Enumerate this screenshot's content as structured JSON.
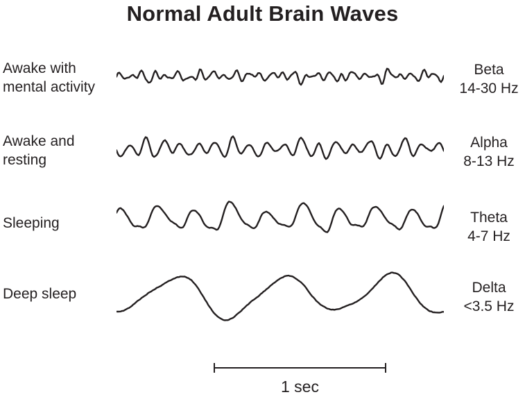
{
  "title": "Normal Adult Brain Waves",
  "colors": {
    "ink": "#231f20",
    "background": "#ffffff"
  },
  "rows": [
    {
      "state_line1": "Awake with",
      "state_line2": "mental activity",
      "band": "Beta",
      "freq": "14-30 Hz",
      "wave": {
        "seed": 7,
        "components": [
          [
            28,
            4.5
          ],
          [
            17,
            2.8
          ],
          [
            44,
            1.8
          ],
          [
            9,
            1.5
          ]
        ],
        "noise": 0.9,
        "amp_mod": 0.35,
        "mod_cycles": 7
      }
    },
    {
      "state_line1": "Awake and",
      "state_line2": "resting",
      "band": "Alpha",
      "freq": "8-13 Hz",
      "wave": {
        "seed": 11,
        "components": [
          [
            19,
            9
          ],
          [
            10,
            3.5
          ],
          [
            30,
            1.6
          ],
          [
            5,
            2
          ]
        ],
        "noise": 0.7,
        "amp_mod": 0.3,
        "mod_cycles": 4
      }
    },
    {
      "state_line1": "Sleeping",
      "state_line2": "",
      "band": "Theta",
      "freq": "4-7 Hz",
      "wave": {
        "seed": 23,
        "components": [
          [
            9,
            15
          ],
          [
            18,
            3.5
          ],
          [
            4.6,
            4.5
          ],
          [
            27,
            1.2
          ]
        ],
        "noise": 0.6,
        "amp_mod": 0.2,
        "mod_cycles": 3
      }
    },
    {
      "state_line1": "Deep sleep",
      "state_line2": "",
      "band": "Delta",
      "freq": "<3.5 Hz",
      "wave": {
        "seed": 5,
        "components": [
          [
            3.05,
            27
          ],
          [
            6.4,
            4.5
          ],
          [
            1.6,
            4
          ]
        ],
        "noise": 0.5,
        "amp_mod": 0.12,
        "mod_cycles": 2
      }
    }
  ],
  "scale_bar": {
    "label": "1 sec"
  }
}
